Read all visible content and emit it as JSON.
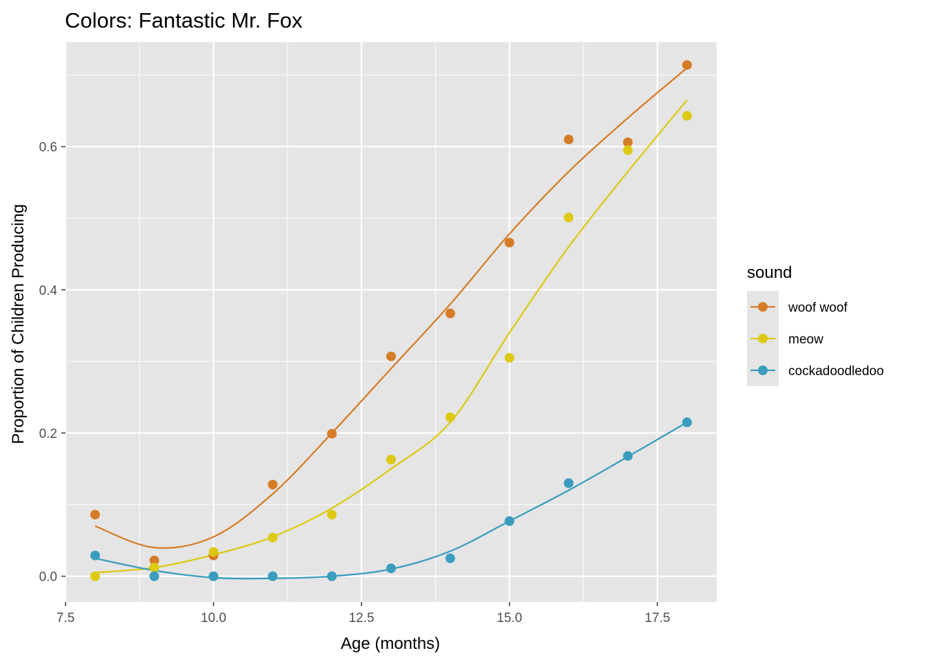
{
  "chart_data": {
    "type": "line",
    "title": "Colors: Fantastic Mr. Fox",
    "xlabel": "Age (months)",
    "ylabel": "Proportion of Children Producing",
    "xlim": [
      7.5,
      18.5
    ],
    "ylim": [
      -0.036,
      0.746
    ],
    "x_ticks": [
      7.5,
      10.0,
      12.5,
      15.0,
      17.5
    ],
    "x_tick_labels": [
      "7.5",
      "10.0",
      "12.5",
      "15.0",
      "17.5"
    ],
    "x_minor_ticks": [
      8.75,
      11.25,
      13.75,
      16.25
    ],
    "y_ticks": [
      0.0,
      0.2,
      0.4,
      0.6
    ],
    "y_tick_labels": [
      "0.0",
      "0.2",
      "0.4",
      "0.6"
    ],
    "y_minor_ticks": [
      0.1,
      0.3,
      0.5,
      0.7
    ],
    "grid": true,
    "panel_background": "#e5e5e5",
    "legend": {
      "title": "sound",
      "placement": "right"
    },
    "x": [
      8,
      9,
      10,
      11,
      12,
      13,
      14,
      15,
      16,
      17,
      18
    ],
    "series": [
      {
        "name": "woof woof",
        "color": "#d67c26",
        "points": [
          0.086,
          0.022,
          0.029,
          0.128,
          0.199,
          0.307,
          0.367,
          0.466,
          0.61,
          0.606,
          0.714
        ],
        "smooth": [
          0.07,
          0.04,
          0.055,
          0.115,
          0.2,
          0.29,
          0.38,
          0.478,
          0.565,
          0.64,
          0.71
        ]
      },
      {
        "name": "meow",
        "color": "#ddc913",
        "points": [
          0.0,
          0.012,
          0.034,
          0.054,
          0.086,
          0.163,
          0.222,
          0.305,
          0.501,
          0.595,
          0.643
        ],
        "smooth": [
          0.005,
          0.012,
          0.03,
          0.055,
          0.095,
          0.15,
          0.215,
          0.34,
          0.46,
          0.565,
          0.665
        ]
      },
      {
        "name": "cockadoodledoo",
        "color": "#3a9dbe",
        "points": [
          0.029,
          0.0,
          0.0,
          0.0,
          0.0,
          0.011,
          0.025,
          0.077,
          0.13,
          0.168,
          0.215
        ],
        "smooth": [
          0.025,
          0.008,
          -0.002,
          -0.003,
          0.0,
          0.01,
          0.035,
          0.077,
          0.12,
          0.167,
          0.215
        ]
      }
    ]
  }
}
